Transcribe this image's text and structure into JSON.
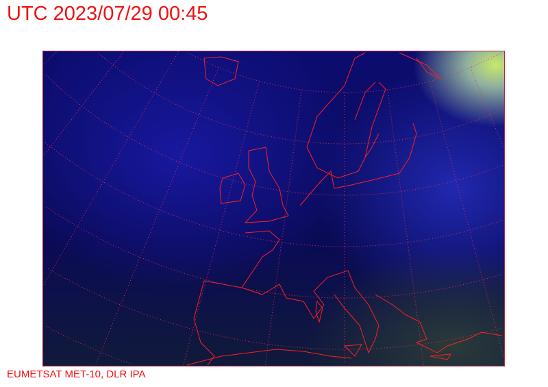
{
  "title": "UTC 2023/07/29 00:45",
  "credit": "EUMETSAT MET-10, DLR IPA",
  "colors": {
    "overlay": "#ff1a1a",
    "frame": "#c02040",
    "text": "#f01010"
  }
}
